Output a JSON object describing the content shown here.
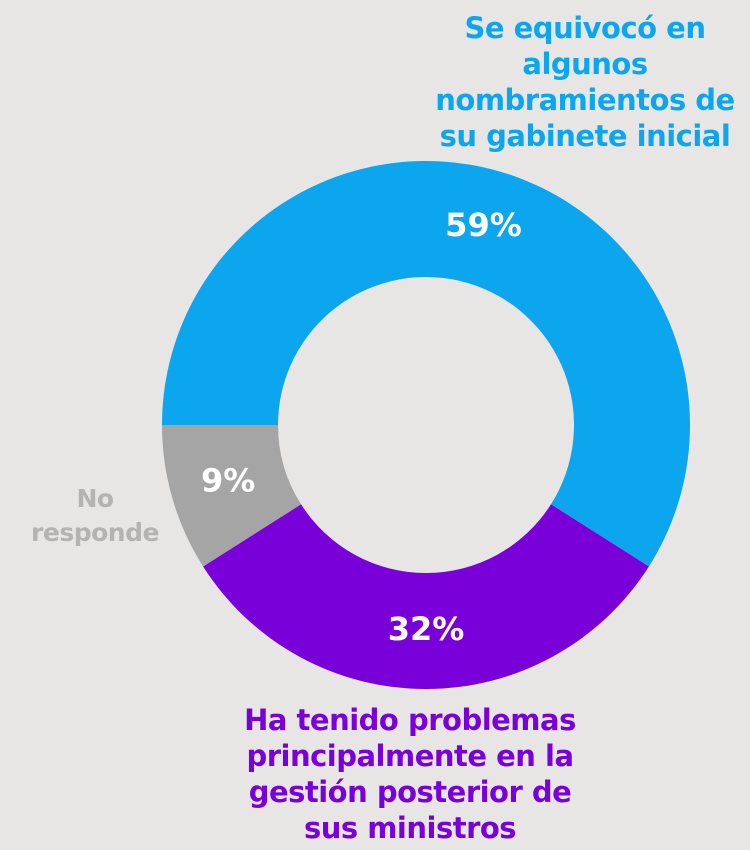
{
  "chart_data": {
    "type": "donut",
    "categories": [
      "Se equivocó en algunos nombramientos de su gabinete inicial",
      "Ha tenido problemas principalmente en la gestión posterior de sus ministros",
      "No responde"
    ],
    "values": [
      59,
      32,
      9
    ],
    "value_labels": [
      "59%",
      "32%",
      "9%"
    ],
    "colors": [
      "#0ba6ee",
      "#7a00d9",
      "#a5a5a5"
    ],
    "label_colors": [
      "#0ba6ee",
      "#7a00d9",
      "#b3b3b3"
    ]
  }
}
